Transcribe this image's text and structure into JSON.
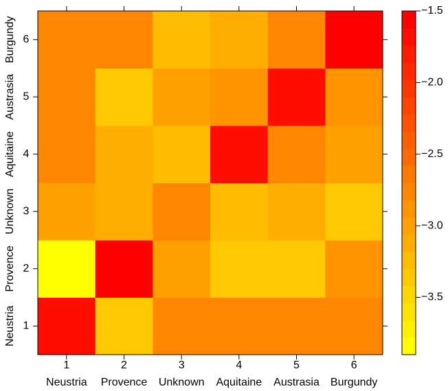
{
  "chart_data": {
    "type": "heatmap",
    "x": {
      "ticks": [
        "1",
        "2",
        "3",
        "4",
        "5",
        "6"
      ],
      "labels": [
        "Neustria",
        "Provence",
        "Unknown",
        "Aquitaine",
        "Austrasia",
        "Burgundy"
      ]
    },
    "y": {
      "ticks": [
        "1",
        "2",
        "3",
        "4",
        "5",
        "6"
      ],
      "labels": [
        "Neustria",
        "Provence",
        "Unknown",
        "Aquitaine",
        "Austrasia",
        "Burgundy"
      ]
    },
    "values": [
      [
        -1.68,
        -3.35,
        -2.82,
        -2.72,
        -2.8,
        -2.8
      ],
      [
        -3.9,
        -1.62,
        -3.0,
        -3.4,
        -3.4,
        -2.92
      ],
      [
        -2.98,
        -3.1,
        -2.78,
        -3.25,
        -3.15,
        -3.35
      ],
      [
        -2.78,
        -3.12,
        -3.3,
        -1.68,
        -2.78,
        -2.95
      ],
      [
        -2.82,
        -3.4,
        -3.05,
        -2.88,
        -1.68,
        -2.9
      ],
      [
        -2.82,
        -2.82,
        -3.2,
        -3.12,
        -2.8,
        -1.55
      ]
    ],
    "colorbar": {
      "range": [
        -3.9,
        -1.5
      ],
      "ticks": [
        -1.5,
        -2.0,
        -2.5,
        -3.0,
        -3.5
      ],
      "tick_labels": [
        "−1.5",
        "−2.0",
        "−2.5",
        "−3.0",
        "−3.5"
      ],
      "colors": [
        "#FFFF00",
        "#FFF100",
        "#FFE400",
        "#FFD700",
        "#FFC900",
        "#FFBC00",
        "#FFAE00",
        "#FFA100",
        "#FF9400",
        "#FF8600",
        "#FF7900",
        "#FF6B00",
        "#FF5E00",
        "#FF5100",
        "#FF4300",
        "#FF3600",
        "#FF2800",
        "#FF1B00",
        "#FF0D00",
        "#FF0000"
      ]
    },
    "grid": false
  }
}
